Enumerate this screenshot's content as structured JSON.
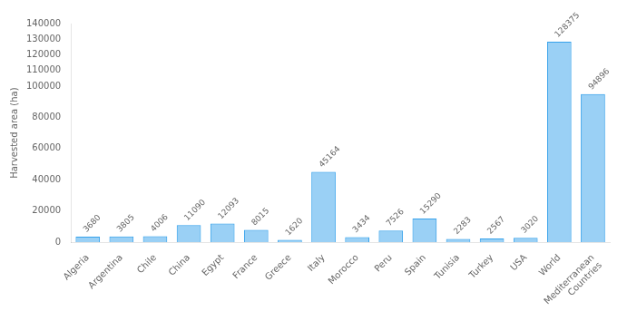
{
  "chart_data": {
    "type": "bar",
    "categories": [
      "Algeria",
      "Argentina",
      "Chile",
      "China",
      "Egypt",
      "France",
      "Greece",
      "Italy",
      "Morocco",
      "Peru",
      "Spain",
      "Tunisia",
      "Turkey",
      "USA",
      "World",
      "Mediterranean\nCountries"
    ],
    "values": [
      3680,
      3805,
      4006,
      11090,
      12093,
      8015,
      1620,
      45164,
      3434,
      7526,
      15290,
      2283,
      2567,
      3020,
      128375,
      94896
    ],
    "ylabel": "Harvested area (ha)",
    "ylim": [
      0,
      140000
    ],
    "yticks": [
      0,
      20000,
      40000,
      60000,
      80000,
      100000,
      110000,
      120000,
      130000,
      140000
    ],
    "grid": false,
    "data_labels": true
  }
}
